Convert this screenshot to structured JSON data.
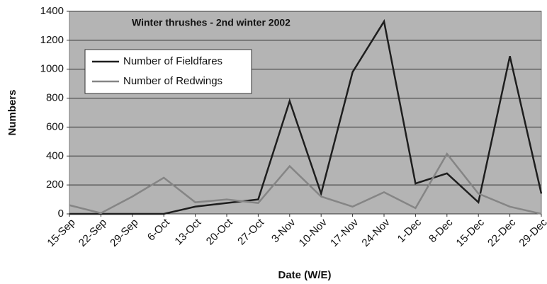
{
  "chart_data": {
    "type": "line",
    "title": "Winter thrushes - 2nd winter 2002",
    "x_label": "Date (W/E)",
    "y_label": "Numbers",
    "categories": [
      "15-Sep",
      "22-Sep",
      "29-Sep",
      "6-Oct",
      "13-Oct",
      "20-Oct",
      "27-Oct",
      "3-Nov",
      "10-Nov",
      "17-Nov",
      "24-Nov",
      "1-Dec",
      "8-Dec",
      "15-Dec",
      "22-Dec",
      "29-Dec"
    ],
    "series": [
      {
        "name": "Number of Fieldfares",
        "color": "#1e1e1e",
        "values": [
          0,
          0,
          0,
          0,
          50,
          75,
          100,
          780,
          140,
          980,
          1330,
          210,
          280,
          80,
          1090,
          140
        ]
      },
      {
        "name": "Number of Redwings",
        "color": "#858585",
        "values": [
          60,
          5,
          120,
          250,
          80,
          100,
          75,
          330,
          120,
          50,
          150,
          40,
          415,
          140,
          50,
          0
        ]
      }
    ],
    "ylim": [
      0,
      1400
    ],
    "yticks": [
      0,
      200,
      400,
      600,
      800,
      1000,
      1200,
      1400
    ],
    "grid": true,
    "legend": "upper left"
  }
}
